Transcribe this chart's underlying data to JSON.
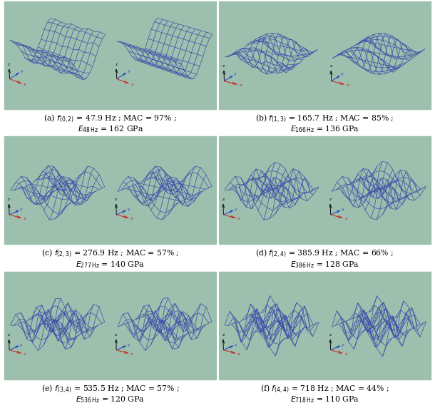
{
  "bg_color": "#9dbfad",
  "panel_bg_light": "#b0ccb8",
  "wire_color": "#3a4aaa",
  "fig_bg": "#ffffff",
  "outer_bg": "#f0f0f0",
  "panels": [
    {
      "label": "(a)",
      "mode": "(0,2)",
      "freq": "47.9",
      "mac": "97",
      "E_sub": "48",
      "E_val": "162",
      "m": 0,
      "n": 2,
      "elev": 28,
      "azim": -55
    },
    {
      "label": "(b)",
      "mode": "(1,3)",
      "freq": "165.7",
      "mac": "85",
      "E_sub": "166",
      "E_val": "136",
      "m": 1,
      "n": 3,
      "elev": 22,
      "azim": -60
    },
    {
      "label": "(c)",
      "mode": "(2,3)",
      "freq": "276.9",
      "mac": "57",
      "E_sub": "277",
      "E_val": "140",
      "m": 2,
      "n": 3,
      "elev": 18,
      "azim": -55
    },
    {
      "label": "(d)",
      "mode": "(2,4)",
      "freq": "385.9",
      "mac": "66",
      "E_sub": "386",
      "E_val": "128",
      "m": 2,
      "n": 4,
      "elev": 18,
      "azim": -55
    },
    {
      "label": "(e)",
      "mode": "(3,4)",
      "freq": "535.5",
      "mac": "57",
      "E_sub": "536",
      "E_val": "120",
      "m": 3,
      "n": 4,
      "elev": 18,
      "azim": -55
    },
    {
      "label": "(f)",
      "mode": "(4,4)",
      "freq": "718",
      "mac": "44",
      "E_sub": "718",
      "E_val": "110",
      "m": 4,
      "n": 4,
      "elev": 18,
      "azim": -55
    }
  ],
  "figsize": [
    6.1,
    5.72
  ],
  "dpi": 100
}
